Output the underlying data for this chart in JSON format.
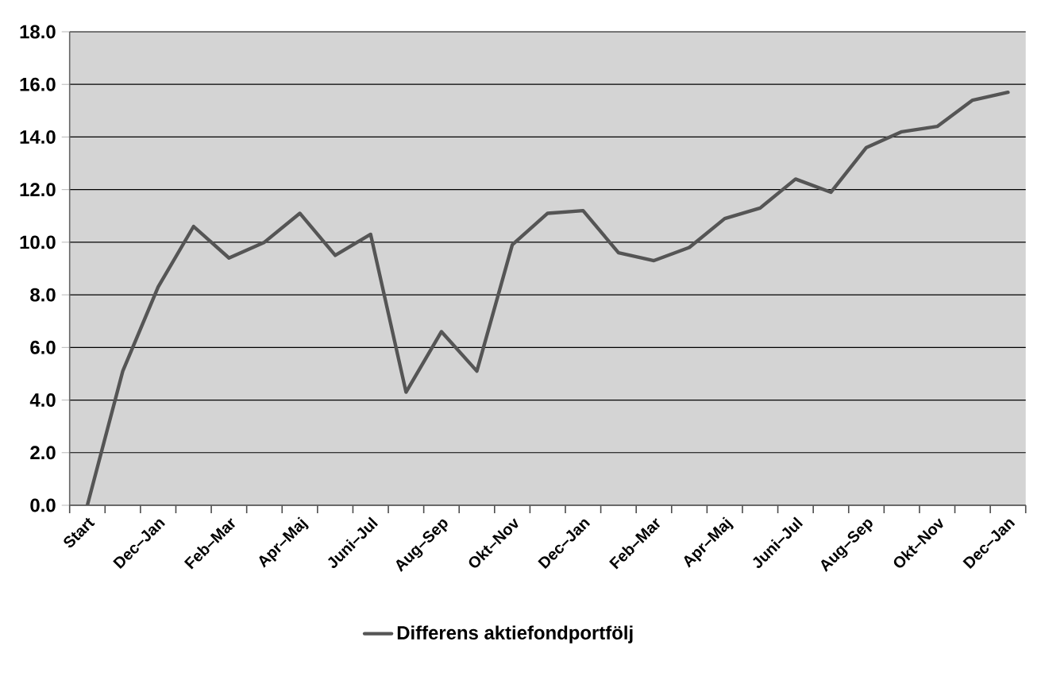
{
  "chart_data": {
    "type": "line",
    "categories": [
      "Start",
      null,
      "Dec–Jan",
      null,
      "Feb–Mar",
      null,
      "Apr–Maj",
      null,
      "Juni–Jul",
      null,
      "Aug–Sep",
      null,
      "Okt–Nov",
      null,
      "Dec–Jan",
      null,
      "Feb–Mar",
      null,
      "Apr–Maj",
      null,
      "Juni–Jul",
      null,
      "Aug–Sep",
      null,
      "Okt–Nov",
      null,
      "Dec–Jan"
    ],
    "series": [
      {
        "name": "Differens aktiefondportfölj",
        "color": "#555555",
        "values": [
          0,
          5.1,
          8.3,
          10.6,
          9.4,
          10.0,
          11.1,
          9.5,
          10.3,
          4.3,
          6.6,
          5.1,
          9.9,
          11.1,
          11.2,
          9.6,
          9.3,
          9.8,
          10.9,
          11.3,
          12.4,
          11.9,
          13.6,
          14.2,
          14.4,
          15.4,
          15.7
        ]
      }
    ],
    "ylim": [
      0,
      18
    ],
    "yticks": [
      {
        "value": 0,
        "label": "0.0"
      },
      {
        "value": 2,
        "label": "2.0"
      },
      {
        "value": 4,
        "label": "4.0"
      },
      {
        "value": 6,
        "label": "6.0"
      },
      {
        "value": 8,
        "label": "8.0"
      },
      {
        "value": 10,
        "label": "10.0"
      },
      {
        "value": 12,
        "label": "12.0"
      },
      {
        "value": 14,
        "label": "14.0"
      },
      {
        "value": 16,
        "label": "16.0"
      },
      {
        "value": 18,
        "label": "18.0"
      }
    ],
    "grid": "y",
    "legend": "bottom"
  }
}
